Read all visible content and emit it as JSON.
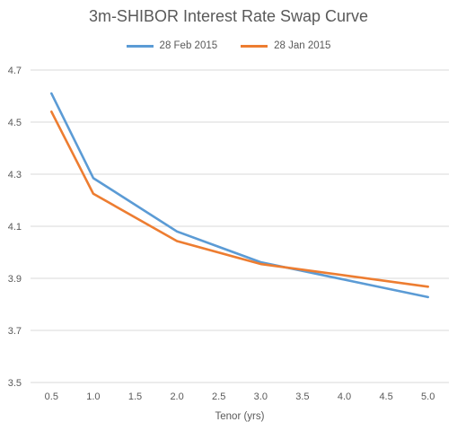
{
  "chart_data": {
    "type": "line",
    "title": "3m-SHIBOR Interest Rate Swap Curve",
    "xlabel": "Tenor (yrs)",
    "ylabel": "",
    "x": [
      0.5,
      1.0,
      2.0,
      3.0,
      5.0
    ],
    "x_tick_labels": [
      "0.5",
      "1.0",
      "1.5",
      "2.0",
      "2.5",
      "3.0",
      "3.5",
      "4.0",
      "4.5",
      "5.0"
    ],
    "x_ticks": [
      0.5,
      1.0,
      1.5,
      2.0,
      2.5,
      3.0,
      3.5,
      4.0,
      4.5,
      5.0
    ],
    "xlim": [
      0.25,
      5.25
    ],
    "y_tick_labels": [
      "3.5",
      "3.7",
      "3.9",
      "4.1",
      "4.3",
      "4.5",
      "4.7"
    ],
    "y_ticks": [
      3.5,
      3.7,
      3.9,
      4.1,
      4.3,
      4.5,
      4.7
    ],
    "ylim": [
      3.5,
      4.7
    ],
    "grid": true,
    "legend_position": "top-center",
    "series": [
      {
        "name": "28 Feb 2015",
        "color": "#5B9BD5",
        "values": [
          4.61,
          4.285,
          4.08,
          3.962,
          3.828
        ]
      },
      {
        "name": "28 Jan 2015",
        "color": "#ED7D31",
        "values": [
          4.54,
          4.225,
          4.043,
          3.955,
          3.868
        ]
      }
    ]
  }
}
